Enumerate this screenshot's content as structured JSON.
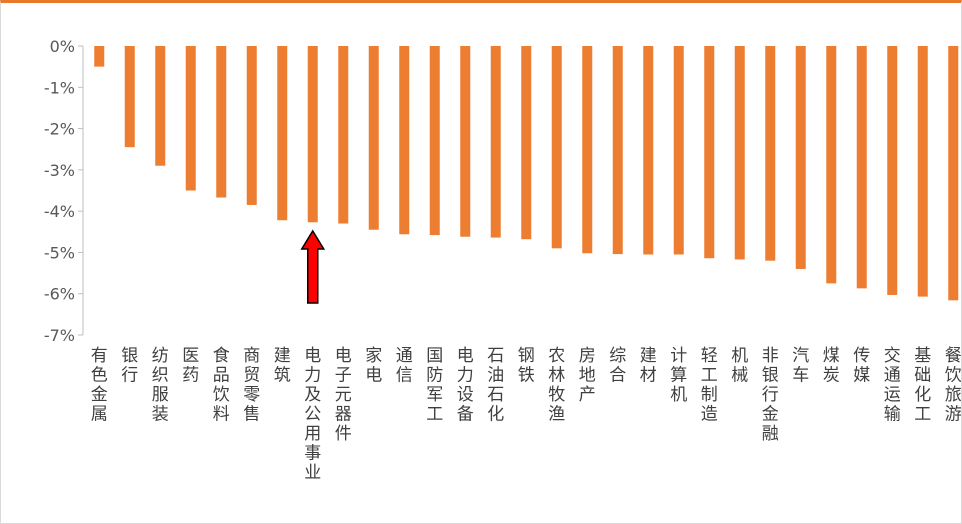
{
  "chart_data": {
    "type": "bar",
    "title": "",
    "xlabel": "",
    "ylabel": "",
    "ylim": [
      -7,
      0
    ],
    "yticks": [
      "0%",
      "-1%",
      "-2%",
      "-3%",
      "-4%",
      "-5%",
      "-6%",
      "-7%"
    ],
    "grid": false,
    "bar_color": "#ED7D31",
    "annotation": {
      "type": "arrow",
      "color": "#FF0000",
      "target": "电力及公用事业"
    },
    "categories": [
      "有色金属",
      "银行",
      "纺织服装",
      "医药",
      "食品饮料",
      "商贸零售",
      "建筑",
      "电力及公用事业",
      "电子元器件",
      "家电",
      "通信",
      "国防军工",
      "电力设备",
      "石油石化",
      "钢铁",
      "农林牧渔",
      "房地产",
      "综合",
      "建材",
      "计算机",
      "轻工制造",
      "机械",
      "非银行金融",
      "汽车",
      "煤炭",
      "传媒",
      "交通运输",
      "基础化工",
      "餐饮旅游"
    ],
    "values": [
      -0.5,
      -2.45,
      -2.9,
      -3.5,
      -3.67,
      -3.85,
      -4.22,
      -4.27,
      -4.3,
      -4.45,
      -4.56,
      -4.58,
      -4.62,
      -4.64,
      -4.68,
      -4.9,
      -5.02,
      -5.04,
      -5.05,
      -5.05,
      -5.14,
      -5.17,
      -5.2,
      -5.4,
      -5.75,
      -5.87,
      -6.03,
      -6.07,
      -6.16
    ]
  }
}
